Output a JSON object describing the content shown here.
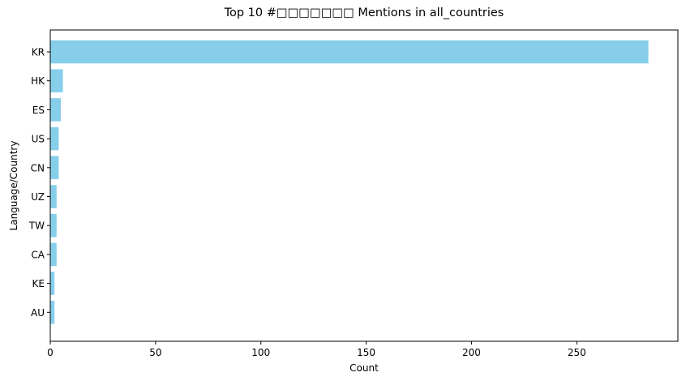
{
  "chart_data": {
    "type": "bar",
    "orientation": "horizontal",
    "title": "Top 10 #□□□□□□□ Mentions in all_countries",
    "xlabel": "Count",
    "ylabel": "Language/Country",
    "categories": [
      "KR",
      "HK",
      "ES",
      "US",
      "CN",
      "UZ",
      "TW",
      "CA",
      "KE",
      "AU"
    ],
    "values": [
      284,
      6,
      5,
      4,
      4,
      3,
      3,
      3,
      2,
      2
    ],
    "xlim": [
      0,
      298
    ],
    "xticks": [
      0,
      50,
      100,
      150,
      200,
      250
    ],
    "bar_color": "#87CEEB",
    "grid": false
  }
}
